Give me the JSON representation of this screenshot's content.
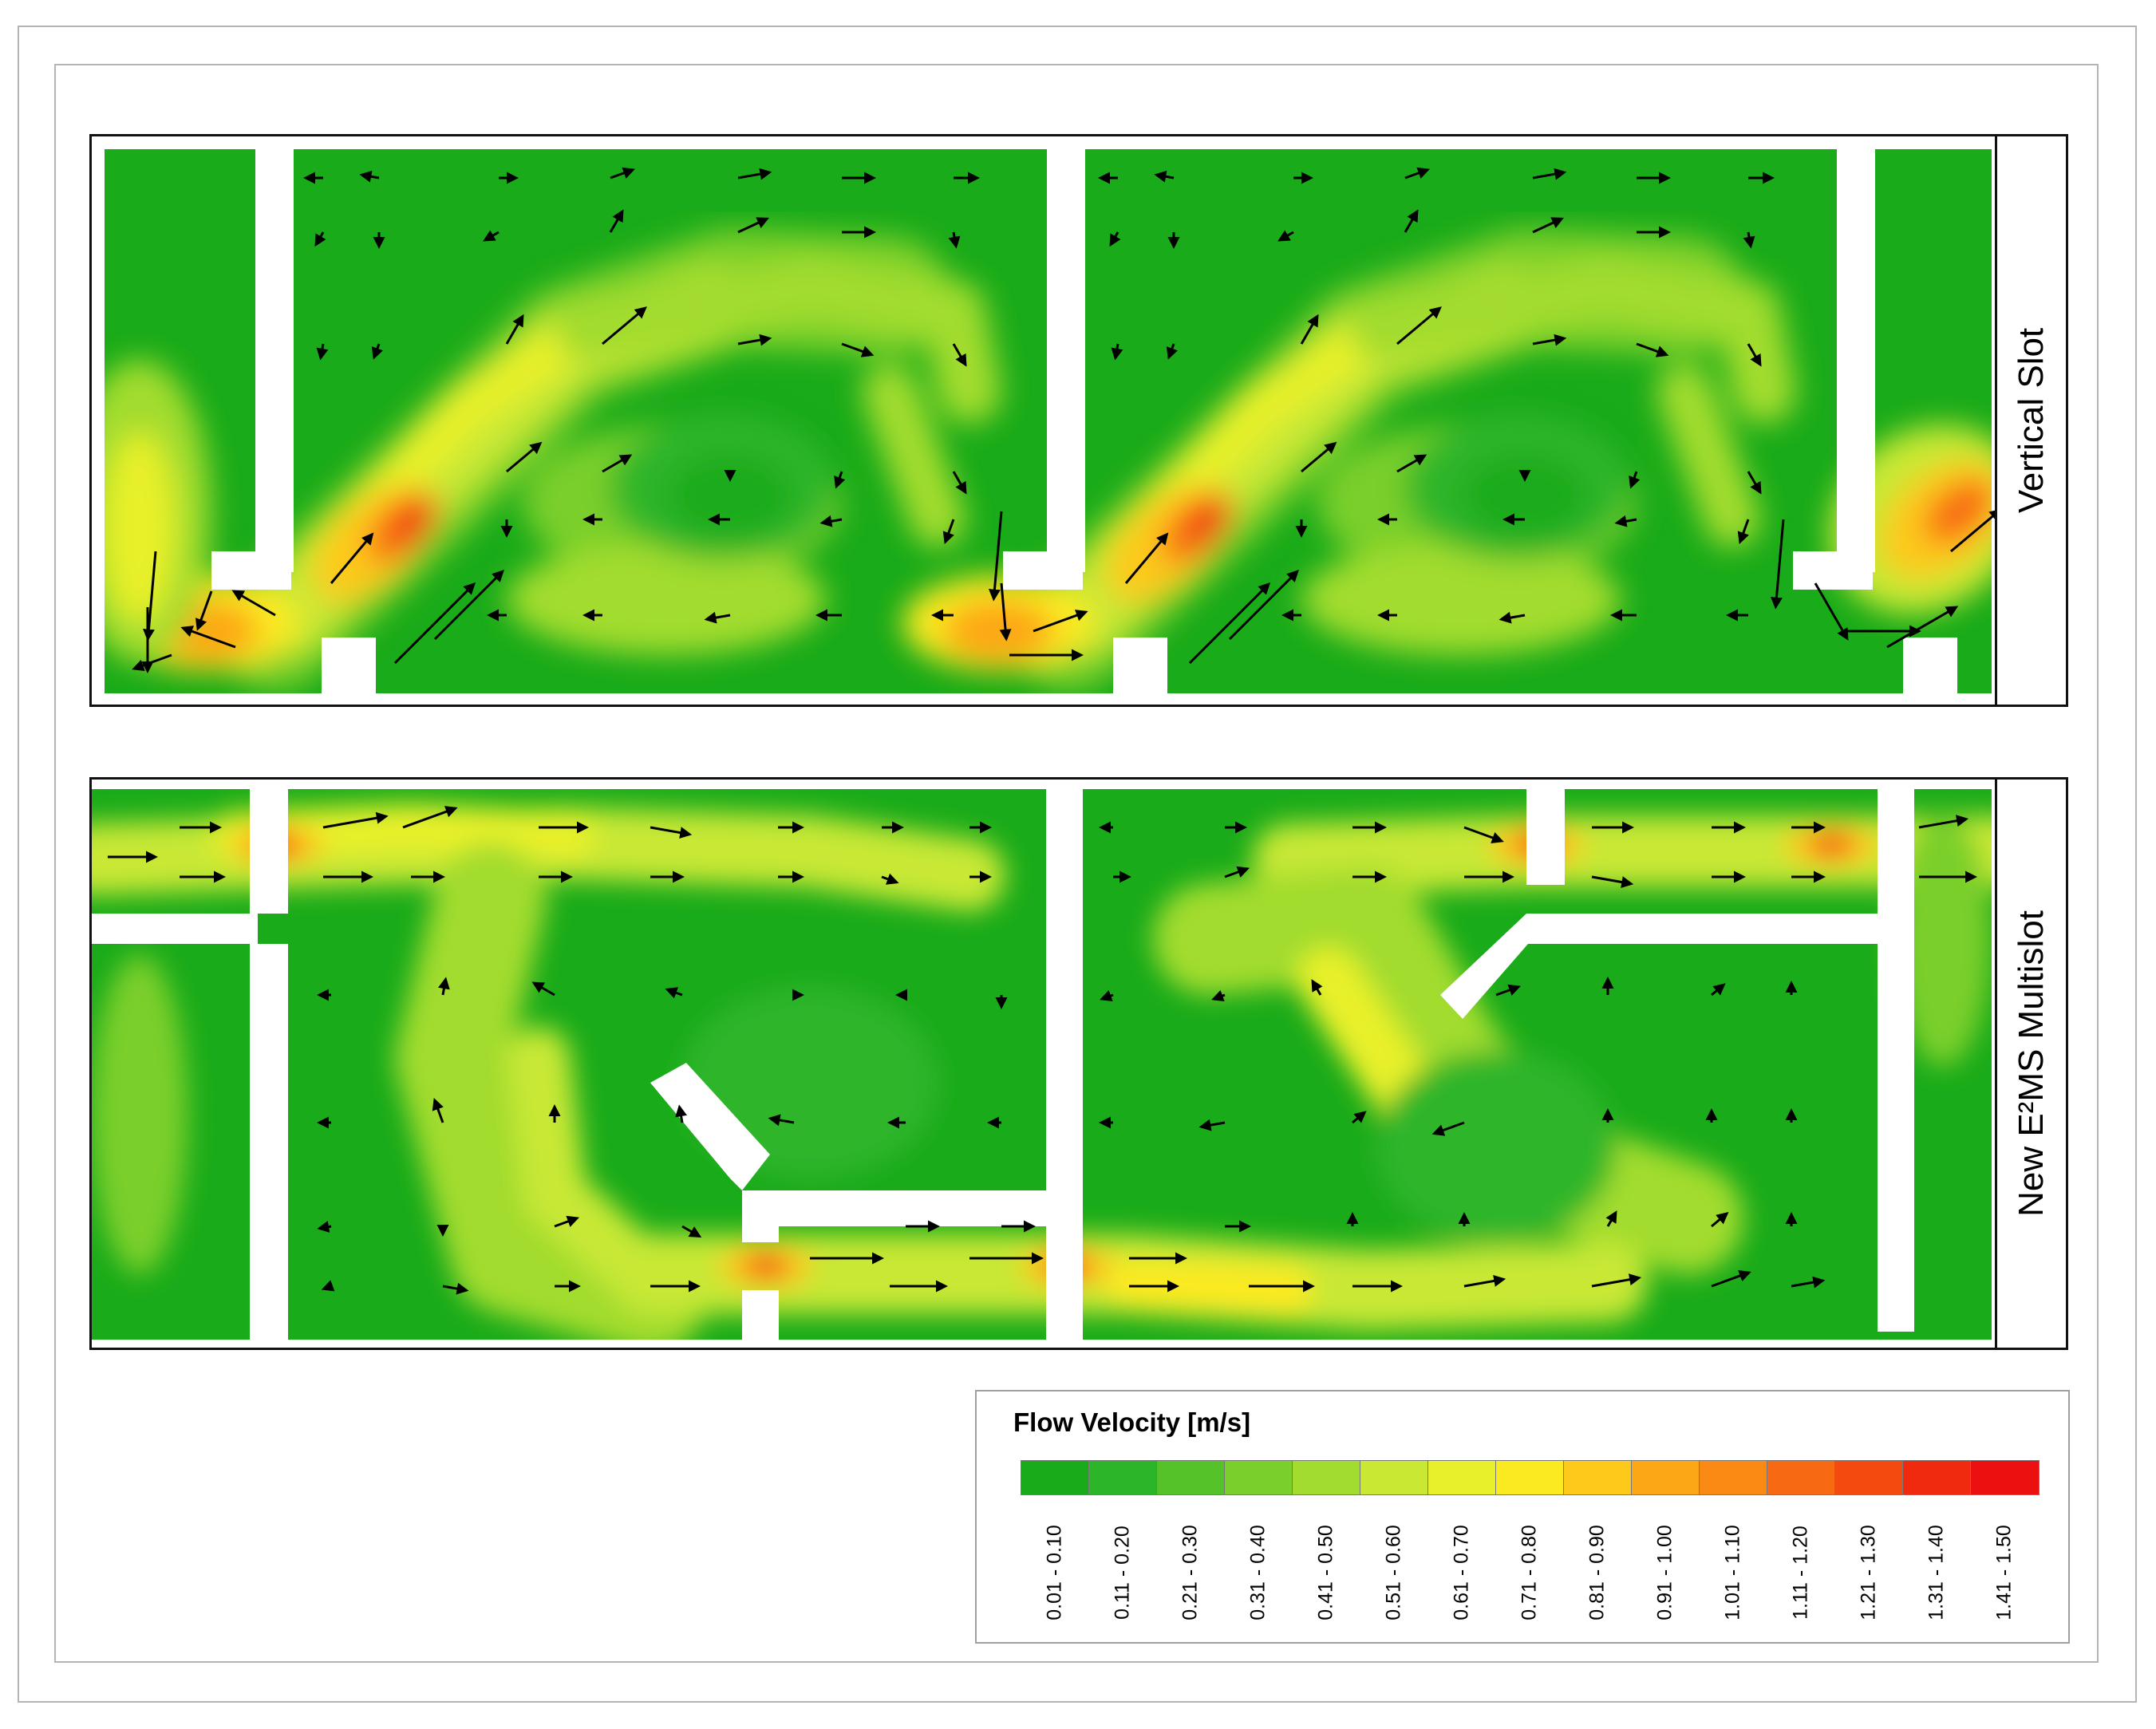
{
  "panels": [
    {
      "label": "Vertical Slot"
    },
    {
      "label": "New E²MS Multislot"
    }
  ],
  "legend": {
    "title": "Flow Velocity [m/s]",
    "classes": [
      {
        "range": "0.01 - 0.10",
        "color": "#1aab1a"
      },
      {
        "range": "0.11 - 0.20",
        "color": "#2db52a"
      },
      {
        "range": "0.21 - 0.30",
        "color": "#55c22a"
      },
      {
        "range": "0.31 - 0.40",
        "color": "#7acf2c"
      },
      {
        "range": "0.41 - 0.50",
        "color": "#a2dc2e"
      },
      {
        "range": "0.51 - 0.60",
        "color": "#c8e834"
      },
      {
        "range": "0.61 - 0.70",
        "color": "#e8f02c"
      },
      {
        "range": "0.71 - 0.80",
        "color": "#fbea20"
      },
      {
        "range": "0.81 - 0.90",
        "color": "#fdc91a"
      },
      {
        "range": "0.91 - 1.00",
        "color": "#fca816"
      },
      {
        "range": "1.01 - 1.10",
        "color": "#fb8a14"
      },
      {
        "range": "1.11 - 1.20",
        "color": "#f86a12"
      },
      {
        "range": "1.21 - 1.30",
        "color": "#f44a10"
      },
      {
        "range": "1.31 - 1.40",
        "color": "#f02a0e"
      },
      {
        "range": "1.41 - 1.50",
        "color": "#ec1010"
      }
    ]
  }
}
